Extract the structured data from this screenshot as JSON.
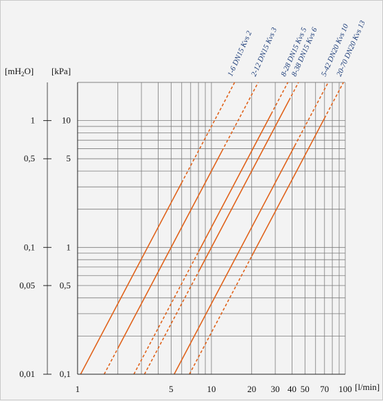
{
  "chart_data": {
    "type": "line",
    "title": "",
    "xlabel": "[l/min]",
    "ylabel_left": "[mH2O]",
    "ylabel_right": "[kPa]",
    "x_scale": "log",
    "y_scale": "log",
    "xlim": [
      1,
      100
    ],
    "ylim_kpa": [
      0.1,
      20
    ],
    "grid": true,
    "x_ticks": [
      {
        "v": 1,
        "label": "1"
      },
      {
        "v": 5,
        "label": "5"
      },
      {
        "v": 10,
        "label": "10"
      },
      {
        "v": 20,
        "label": "20"
      },
      {
        "v": 30,
        "label": "30"
      },
      {
        "v": 40,
        "label": "40"
      },
      {
        "v": 50,
        "label": "50"
      },
      {
        "v": 70,
        "label": "70"
      },
      {
        "v": 100,
        "label": "100"
      }
    ],
    "y_ticks_kpa": [
      {
        "v": 0.1,
        "label": "0,1"
      },
      {
        "v": 0.5,
        "label": "0,5"
      },
      {
        "v": 1,
        "label": "1"
      },
      {
        "v": 5,
        "label": "5"
      },
      {
        "v": 10,
        "label": "10"
      }
    ],
    "y_ticks_mh2o": [
      {
        "v": 0.1,
        "label": "0,01"
      },
      {
        "v": 0.5,
        "label": "0,05"
      },
      {
        "v": 1,
        "label": "0,1"
      },
      {
        "v": 5,
        "label": "0,5"
      },
      {
        "v": 10,
        "label": "1"
      }
    ],
    "series": [
      {
        "name": "1-6 DN15 Kvs 2",
        "color": "#e0621a",
        "kvs": 2,
        "range": [
          1,
          6
        ]
      },
      {
        "name": "2-12 DN15 Kvs 3",
        "color": "#e0621a",
        "kvs": 3,
        "range": [
          2,
          12
        ]
      },
      {
        "name": "8-28 DN15 Kvs 5",
        "color": "#e0621a",
        "kvs": 5,
        "range": [
          8,
          28
        ]
      },
      {
        "name": "8-38 DN15 Kvs 6",
        "color": "#e0621a",
        "kvs": 6,
        "range": [
          8,
          38
        ]
      },
      {
        "name": "5-42 DN20 Kvs 10",
        "color": "#e0621a",
        "kvs": 10,
        "range": [
          5,
          42
        ]
      },
      {
        "name": "20-70 DN20 Kvs 13",
        "color": "#e0621a",
        "kvs": 13,
        "range": [
          20,
          70
        ]
      }
    ]
  }
}
